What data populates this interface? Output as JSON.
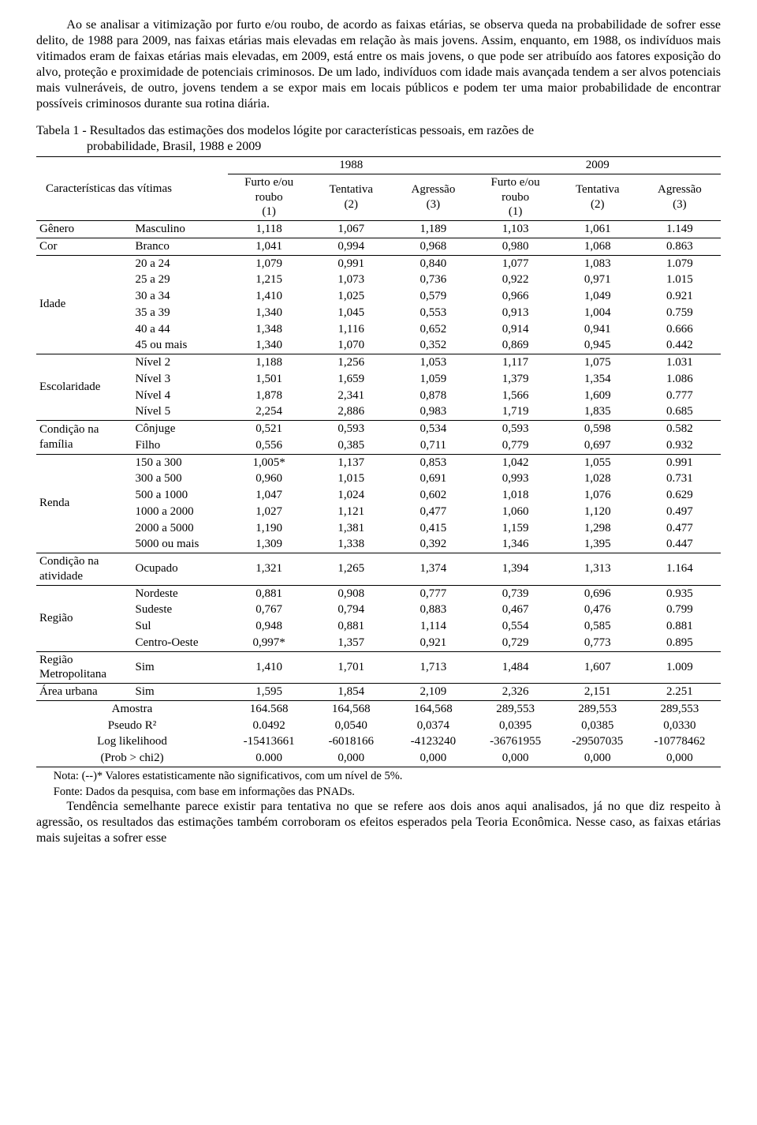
{
  "paragraphs": {
    "p1": "Ao se analisar a vitimização por furto e/ou roubo, de acordo as faixas etárias, se observa queda na probabilidade de sofrer esse delito, de 1988 para 2009, nas faixas etárias mais elevadas em relação às mais jovens. Assim, enquanto, em 1988, os indivíduos mais vitimados eram de faixas etárias mais elevadas, em 2009, está entre os mais jovens, o que pode ser atribuído aos fatores exposição do alvo, proteção e proximidade de potenciais criminosos. De um lado, indivíduos com idade mais avançada tendem a ser alvos potenciais mais vulneráveis, de outro, jovens tendem a se expor mais em locais públicos e podem ter uma maior probabilidade de encontrar possíveis criminosos durante sua rotina diária.",
    "p2": "Tendência semelhante parece existir para tentativa no que se refere aos dois anos aqui analisados, já no que diz respeito à agressão, os resultados das estimações também corroboram os efeitos esperados pela Teoria Econômica. Nesse caso, as faixas etárias mais sujeitas a sofrer esse"
  },
  "tableTitle": {
    "l1": "Tabela 1 - Resultados das estimações dos modelos lógite por características pessoais, em razões de",
    "l2": "probabilidade, Brasil, 1988 e 2009"
  },
  "headers": {
    "chars": "Características das vítimas",
    "y1988": "1988",
    "y2009": "2009",
    "col1": "Furto e/ou\nroubo\n(1)",
    "col2": "Tentativa\n(2)",
    "col3": "Agressão\n(3)"
  },
  "groups": [
    {
      "label": "Gênero",
      "sub": [
        "Masculino"
      ],
      "topBorder": true
    },
    {
      "label": "Cor",
      "sub": [
        "Branco"
      ],
      "topBorder": true
    },
    {
      "label": "Idade",
      "sub": [
        "20 a 24",
        "25 a 29",
        "30 a 34",
        "35 a 39",
        "40 a 44",
        "45 ou mais"
      ],
      "topBorder": true
    },
    {
      "label": "Escolaridade",
      "sub": [
        "Nível 2",
        "Nível 3",
        "Nível 4",
        "Nível 5"
      ],
      "topBorder": true
    },
    {
      "label": "Condição na família",
      "sub": [
        "Cônjuge",
        "Filho"
      ],
      "topBorder": true
    },
    {
      "label": "Renda",
      "sub": [
        "150 a 300",
        "300 a 500",
        "500 a 1000",
        "1000 a 2000",
        "2000 a 5000",
        "5000 ou mais"
      ],
      "topBorder": true
    },
    {
      "label": "Condição na atividade",
      "sub": [
        "Ocupado"
      ],
      "topBorder": true
    },
    {
      "label": "Região",
      "sub": [
        "Nordeste",
        "Sudeste",
        "Sul",
        "Centro-Oeste"
      ],
      "topBorder": true
    },
    {
      "label": "Região Metropolitana",
      "sub": [
        "Sim"
      ],
      "topBorder": true
    },
    {
      "label": "Área urbana",
      "sub": [
        "Sim"
      ],
      "topBorder": true
    }
  ],
  "data": {
    "Masculino": [
      "1,118",
      "1,067",
      "1,189",
      "1,103",
      "1,061",
      "1.149"
    ],
    "Branco": [
      "1,041",
      "0,994",
      "0,968",
      "0,980",
      "1,068",
      "0.863"
    ],
    "20 a 24": [
      "1,079",
      "0,991",
      "0,840",
      "1,077",
      "1,083",
      "1.079"
    ],
    "25 a 29": [
      "1,215",
      "1,073",
      "0,736",
      "0,922",
      "0,971",
      "1.015"
    ],
    "30 a 34": [
      "1,410",
      "1,025",
      "0,579",
      "0,966",
      "1,049",
      "0.921"
    ],
    "35 a 39": [
      "1,340",
      "1,045",
      "0,553",
      "0,913",
      "1,004",
      "0.759"
    ],
    "40 a 44": [
      "1,348",
      "1,116",
      "0,652",
      "0,914",
      "0,941",
      "0.666"
    ],
    "45 ou mais": [
      "1,340",
      "1,070",
      "0,352",
      "0,869",
      "0,945",
      "0.442"
    ],
    "Nível 2": [
      "1,188",
      "1,256",
      "1,053",
      "1,117",
      "1,075",
      "1.031"
    ],
    "Nível 3": [
      "1,501",
      "1,659",
      "1,059",
      "1,379",
      "1,354",
      "1.086"
    ],
    "Nível 4": [
      "1,878",
      "2,341",
      "0,878",
      "1,566",
      "1,609",
      "0.777"
    ],
    "Nível 5": [
      "2,254",
      "2,886",
      "0,983",
      "1,719",
      "1,835",
      "0.685"
    ],
    "Cônjuge": [
      "0,521",
      "0,593",
      "0,534",
      "0,593",
      "0,598",
      "0.582"
    ],
    "Filho": [
      "0,556",
      "0,385",
      "0,711",
      "0,779",
      "0,697",
      "0.932"
    ],
    "150 a 300": [
      "1,005*",
      "1,137",
      "0,853",
      "1,042",
      "1,055",
      "0.991"
    ],
    "300 a 500": [
      "0,960",
      "1,015",
      "0,691",
      "0,993",
      "1,028",
      "0.731"
    ],
    "500 a 1000": [
      "1,047",
      "1,024",
      "0,602",
      "1,018",
      "1,076",
      "0.629"
    ],
    "1000 a 2000": [
      "1,027",
      "1,121",
      "0,477",
      "1,060",
      "1,120",
      "0.497"
    ],
    "2000 a 5000": [
      "1,190",
      "1,381",
      "0,415",
      "1,159",
      "1,298",
      "0.477"
    ],
    "5000 ou mais": [
      "1,309",
      "1,338",
      "0,392",
      "1,346",
      "1,395",
      "0.447"
    ],
    "Ocupado": [
      "1,321",
      "1,265",
      "1,374",
      "1,394",
      "1,313",
      "1.164"
    ],
    "Nordeste": [
      "0,881",
      "0,908",
      "0,777",
      "0,739",
      "0,696",
      "0.935"
    ],
    "Sudeste": [
      "0,767",
      "0,794",
      "0,883",
      "0,467",
      "0,476",
      "0.799"
    ],
    "Sul": [
      "0,948",
      "0,881",
      "1,114",
      "0,554",
      "0,585",
      "0.881"
    ],
    "Centro-Oeste": [
      "0,997*",
      "1,357",
      "0,921",
      "0,729",
      "0,773",
      "0.895"
    ],
    "Sim_RM": [
      "1,410",
      "1,701",
      "1,713",
      "1,484",
      "1,607",
      "1.009"
    ],
    "Sim_AU": [
      "1,595",
      "1,854",
      "2,109",
      "2,326",
      "2,151",
      "2.251"
    ]
  },
  "footer": [
    {
      "label": "Amostra",
      "values": [
        "164.568",
        "164,568",
        "164,568",
        "289,553",
        "289,553",
        "289,553"
      ]
    },
    {
      "label": "Pseudo R²",
      "values": [
        "0.0492",
        "0,0540",
        "0,0374",
        "0,0395",
        "0,0385",
        "0,0330"
      ]
    },
    {
      "label": "Log likelihood",
      "values": [
        "-15413661",
        "-6018166",
        "-4123240",
        "-36761955",
        "-29507035",
        "-10778462"
      ]
    },
    {
      "label": "(Prob > chi2)",
      "values": [
        "0.000",
        "0,000",
        "0,000",
        "0,000",
        "0,000",
        "0,000"
      ]
    }
  ],
  "notes": {
    "n1": "Nota: (--)* Valores estatisticamente não significativos, com um nível de 5%.",
    "n2": "Fonte: Dados da pesquisa, com base em informações das PNADs."
  }
}
